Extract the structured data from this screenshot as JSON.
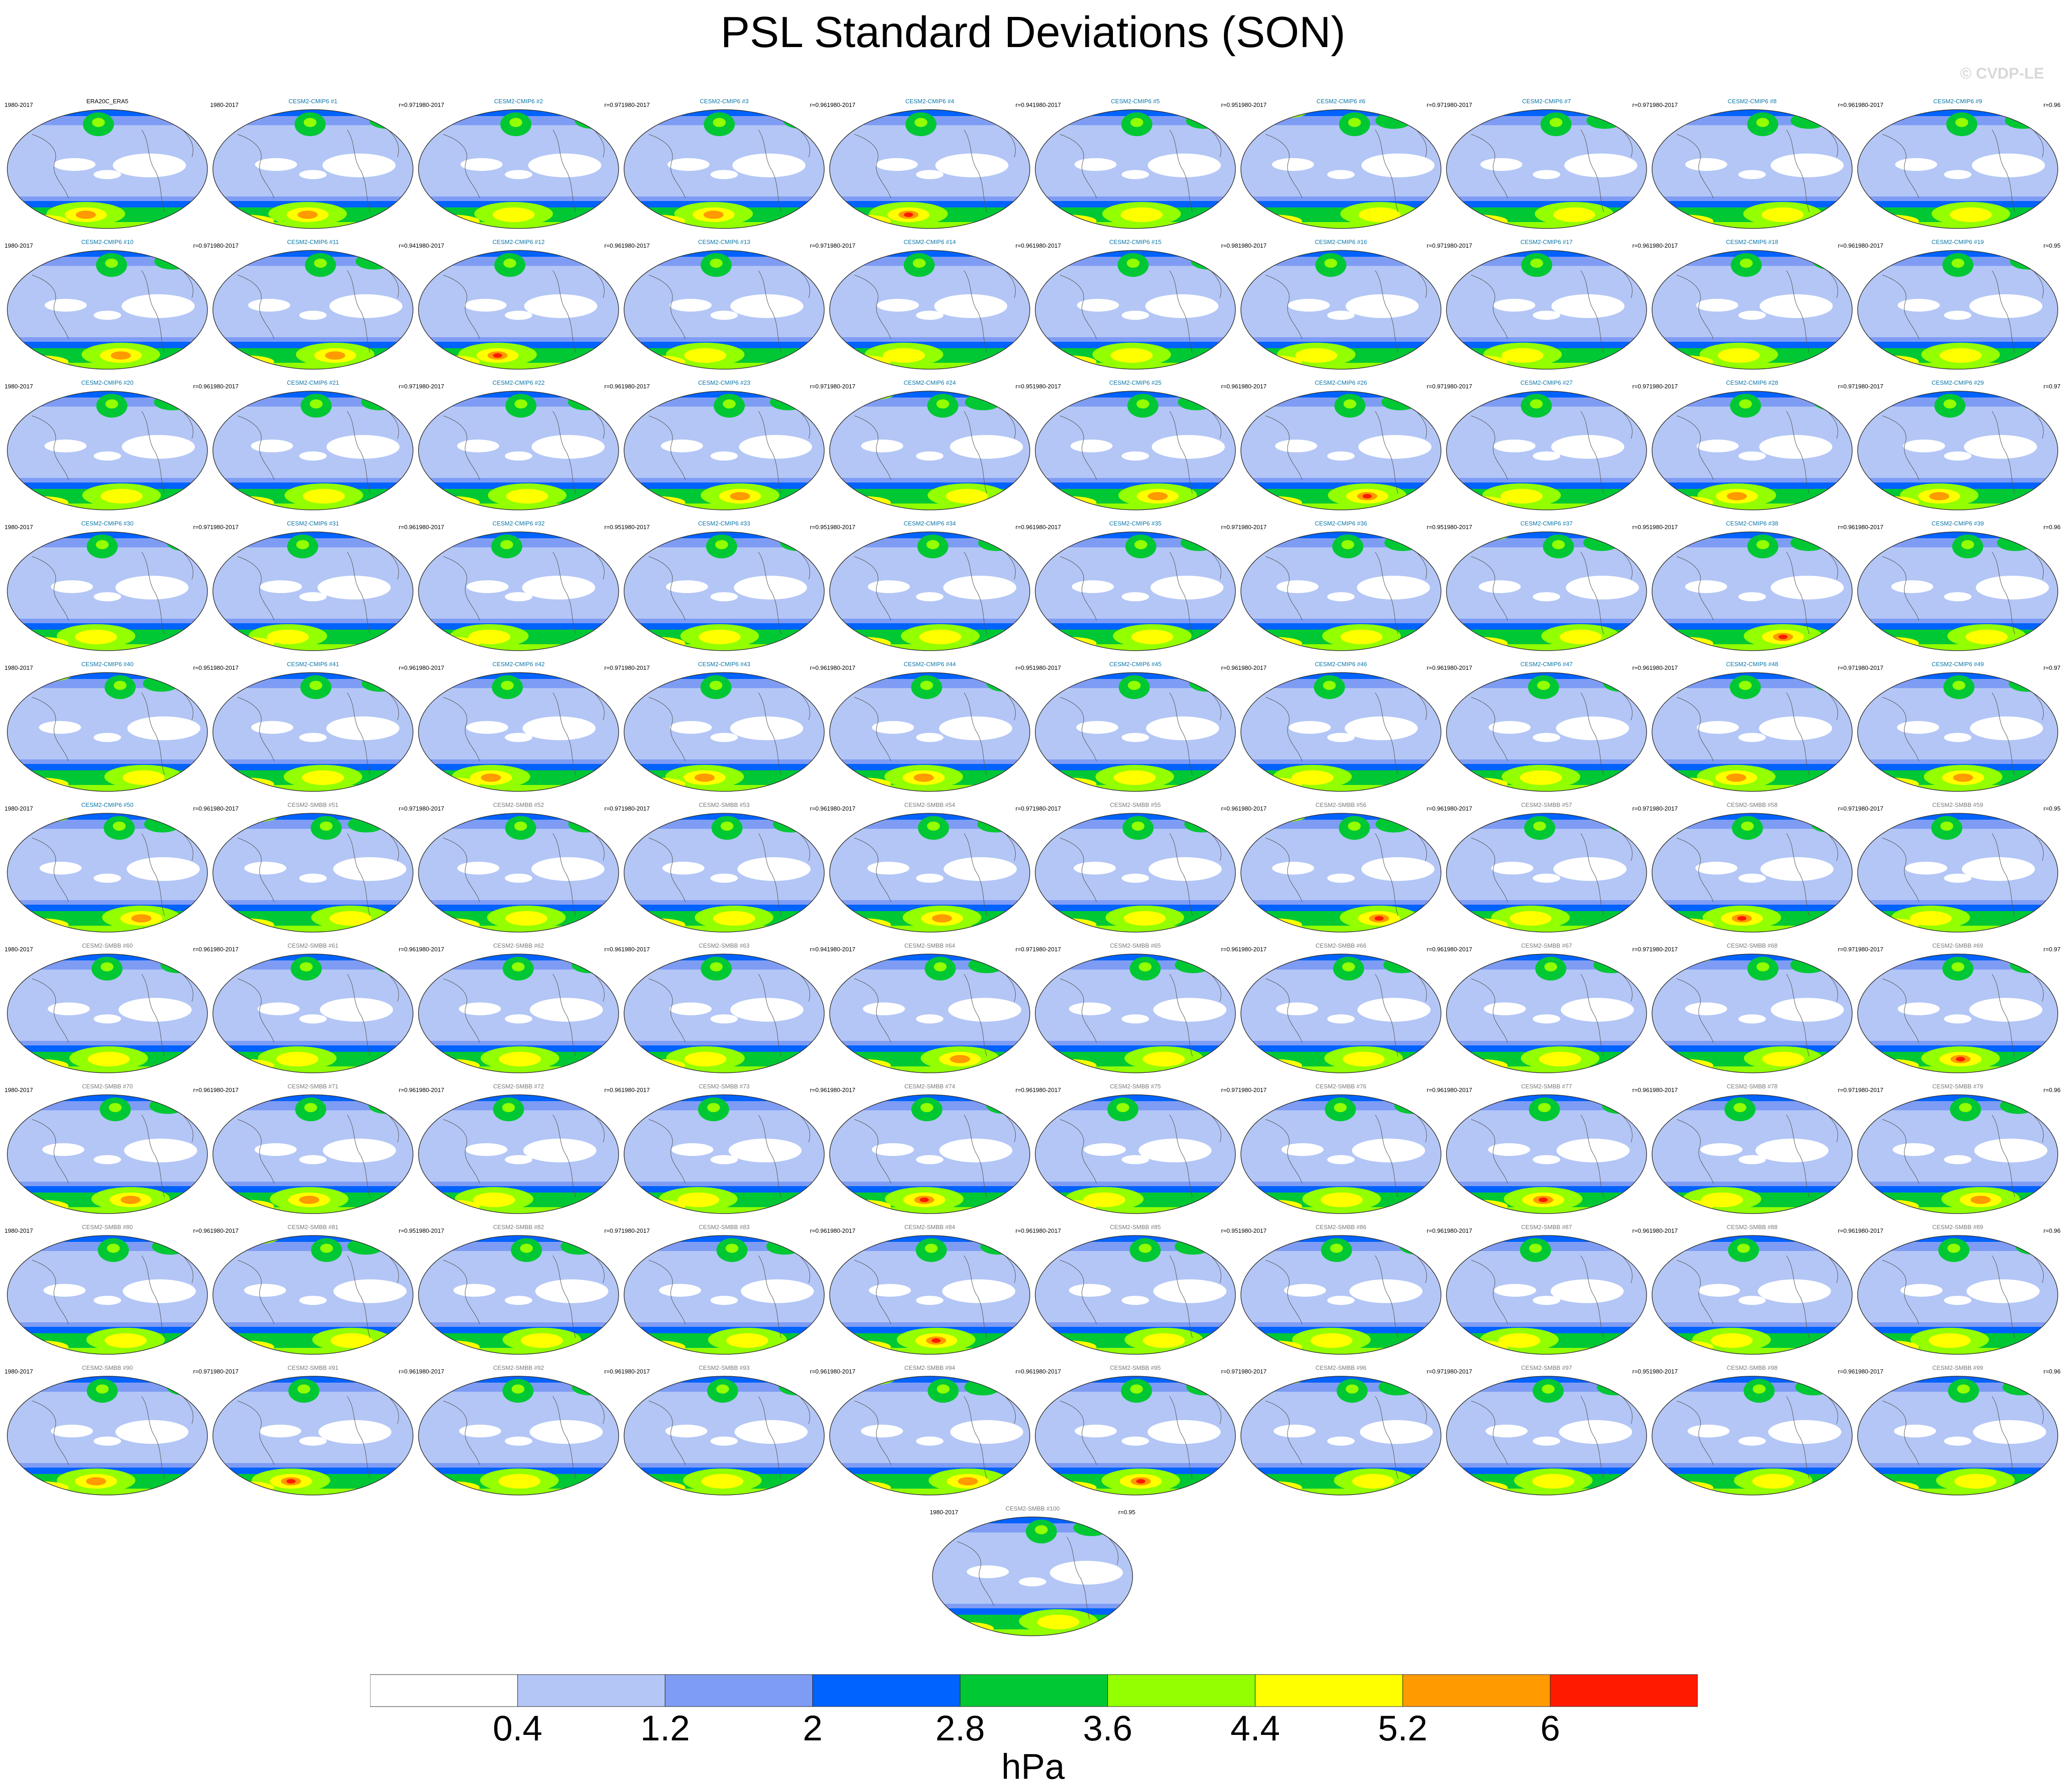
{
  "chart_data": {
    "type": "heatmap",
    "title": "PSL Standard Deviations (SON)",
    "watermark": "© CVDP-LE",
    "units": "hPa",
    "colorbar": {
      "levels": [
        "0.4",
        "1.2",
        "2",
        "2.8",
        "3.6",
        "4.4",
        "5.2",
        "6"
      ],
      "colors": [
        "#ffffff",
        "#b3c6f6",
        "#7f9cf5",
        "#0062ff",
        "#00c834",
        "#93ff00",
        "#ffff00",
        "#ff9a00",
        "#ff1a00"
      ]
    },
    "panels": [
      {
        "name": "ERA20C_ERA5",
        "period": "1980-2017",
        "corr": "",
        "peak": 2
      },
      {
        "name": "CESM2-CMIP6 #1",
        "period": "1980-2017",
        "corr": "r=0.97",
        "peak": 2
      },
      {
        "name": "CESM2-CMIP6 #2",
        "period": "1980-2017",
        "corr": "r=0.97",
        "peak": 1
      },
      {
        "name": "CESM2-CMIP6 #3",
        "period": "1980-2017",
        "corr": "r=0.96",
        "peak": 2
      },
      {
        "name": "CESM2-CMIP6 #4",
        "period": "1980-2017",
        "corr": "r=0.94",
        "peak": 3
      },
      {
        "name": "CESM2-CMIP6 #5",
        "period": "1980-2017",
        "corr": "r=0.95",
        "peak": 1
      },
      {
        "name": "CESM2-CMIP6 #6",
        "period": "1980-2017",
        "corr": "r=0.97",
        "peak": 1
      },
      {
        "name": "CESM2-CMIP6 #7",
        "period": "1980-2017",
        "corr": "r=0.97",
        "peak": 1
      },
      {
        "name": "CESM2-CMIP6 #8",
        "period": "1980-2017",
        "corr": "r=0.96",
        "peak": 1
      },
      {
        "name": "CESM2-CMIP6 #9",
        "period": "1980-2017",
        "corr": "r=0.96",
        "peak": 1
      },
      {
        "name": "CESM2-CMIP6 #10",
        "period": "1980-2017",
        "corr": "r=0.97",
        "peak": 2
      },
      {
        "name": "CESM2-CMIP6 #11",
        "period": "1980-2017",
        "corr": "r=0.94",
        "peak": 2
      },
      {
        "name": "CESM2-CMIP6 #12",
        "period": "1980-2017",
        "corr": "r=0.96",
        "peak": 3
      },
      {
        "name": "CESM2-CMIP6 #13",
        "period": "1980-2017",
        "corr": "r=0.97",
        "peak": 1
      },
      {
        "name": "CESM2-CMIP6 #14",
        "period": "1980-2017",
        "corr": "r=0.96",
        "peak": 1
      },
      {
        "name": "CESM2-CMIP6 #15",
        "period": "1980-2017",
        "corr": "r=0.98",
        "peak": 1
      },
      {
        "name": "CESM2-CMIP6 #16",
        "period": "1980-2017",
        "corr": "r=0.97",
        "peak": 1
      },
      {
        "name": "CESM2-CMIP6 #17",
        "period": "1980-2017",
        "corr": "r=0.96",
        "peak": 1
      },
      {
        "name": "CESM2-CMIP6 #18",
        "period": "1980-2017",
        "corr": "r=0.96",
        "peak": 1
      },
      {
        "name": "CESM2-CMIP6 #19",
        "period": "1980-2017",
        "corr": "r=0.95",
        "peak": 1
      },
      {
        "name": "CESM2-CMIP6 #20",
        "period": "1980-2017",
        "corr": "r=0.96",
        "peak": 1
      },
      {
        "name": "CESM2-CMIP6 #21",
        "period": "1980-2017",
        "corr": "r=0.97",
        "peak": 1
      },
      {
        "name": "CESM2-CMIP6 #22",
        "period": "1980-2017",
        "corr": "r=0.96",
        "peak": 1
      },
      {
        "name": "CESM2-CMIP6 #23",
        "period": "1980-2017",
        "corr": "r=0.97",
        "peak": 2
      },
      {
        "name": "CESM2-CMIP6 #24",
        "period": "1980-2017",
        "corr": "r=0.95",
        "peak": 1
      },
      {
        "name": "CESM2-CMIP6 #25",
        "period": "1980-2017",
        "corr": "r=0.96",
        "peak": 2
      },
      {
        "name": "CESM2-CMIP6 #26",
        "period": "1980-2017",
        "corr": "r=0.97",
        "peak": 3
      },
      {
        "name": "CESM2-CMIP6 #27",
        "period": "1980-2017",
        "corr": "r=0.97",
        "peak": 1
      },
      {
        "name": "CESM2-CMIP6 #28",
        "period": "1980-2017",
        "corr": "r=0.97",
        "peak": 2
      },
      {
        "name": "CESM2-CMIP6 #29",
        "period": "1980-2017",
        "corr": "r=0.97",
        "peak": 2
      },
      {
        "name": "CESM2-CMIP6 #30",
        "period": "1980-2017",
        "corr": "r=0.97",
        "peak": 1
      },
      {
        "name": "CESM2-CMIP6 #31",
        "period": "1980-2017",
        "corr": "r=0.96",
        "peak": 1
      },
      {
        "name": "CESM2-CMIP6 #32",
        "period": "1980-2017",
        "corr": "r=0.95",
        "peak": 1
      },
      {
        "name": "CESM2-CMIP6 #33",
        "period": "1980-2017",
        "corr": "r=0.95",
        "peak": 1
      },
      {
        "name": "CESM2-CMIP6 #34",
        "period": "1980-2017",
        "corr": "r=0.96",
        "peak": 1
      },
      {
        "name": "CESM2-CMIP6 #35",
        "period": "1980-2017",
        "corr": "r=0.97",
        "peak": 1
      },
      {
        "name": "CESM2-CMIP6 #36",
        "period": "1980-2017",
        "corr": "r=0.95",
        "peak": 1
      },
      {
        "name": "CESM2-CMIP6 #37",
        "period": "1980-2017",
        "corr": "r=0.95",
        "peak": 1
      },
      {
        "name": "CESM2-CMIP6 #38",
        "period": "1980-2017",
        "corr": "r=0.96",
        "peak": 3
      },
      {
        "name": "CESM2-CMIP6 #39",
        "period": "1980-2017",
        "corr": "r=0.96",
        "peak": 1
      },
      {
        "name": "CESM2-CMIP6 #40",
        "period": "1980-2017",
        "corr": "r=0.95",
        "peak": 1
      },
      {
        "name": "CESM2-CMIP6 #41",
        "period": "1980-2017",
        "corr": "r=0.96",
        "peak": 1
      },
      {
        "name": "CESM2-CMIP6 #42",
        "period": "1980-2017",
        "corr": "r=0.97",
        "peak": 2
      },
      {
        "name": "CESM2-CMIP6 #43",
        "period": "1980-2017",
        "corr": "r=0.96",
        "peak": 2
      },
      {
        "name": "CESM2-CMIP6 #44",
        "period": "1980-2017",
        "corr": "r=0.95",
        "peak": 2
      },
      {
        "name": "CESM2-CMIP6 #45",
        "period": "1980-2017",
        "corr": "r=0.96",
        "peak": 1
      },
      {
        "name": "CESM2-CMIP6 #46",
        "period": "1980-2017",
        "corr": "r=0.96",
        "peak": 1
      },
      {
        "name": "CESM2-CMIP6 #47",
        "period": "1980-2017",
        "corr": "r=0.96",
        "peak": 1
      },
      {
        "name": "CESM2-CMIP6 #48",
        "period": "1980-2017",
        "corr": "r=0.97",
        "peak": 2
      },
      {
        "name": "CESM2-CMIP6 #49",
        "period": "1980-2017",
        "corr": "r=0.97",
        "peak": 2
      },
      {
        "name": "CESM2-CMIP6 #50",
        "period": "1980-2017",
        "corr": "r=0.96",
        "peak": 2
      },
      {
        "name": "CESM2-SMBB #51",
        "period": "1980-2017",
        "corr": "r=0.97",
        "peak": 1
      },
      {
        "name": "CESM2-SMBB #52",
        "period": "1980-2017",
        "corr": "r=0.97",
        "peak": 1
      },
      {
        "name": "CESM2-SMBB #53",
        "period": "1980-2017",
        "corr": "r=0.96",
        "peak": 1
      },
      {
        "name": "CESM2-SMBB #54",
        "period": "1980-2017",
        "corr": "r=0.97",
        "peak": 2
      },
      {
        "name": "CESM2-SMBB #55",
        "period": "1980-2017",
        "corr": "r=0.96",
        "peak": 1
      },
      {
        "name": "CESM2-SMBB #56",
        "period": "1980-2017",
        "corr": "r=0.96",
        "peak": 3
      },
      {
        "name": "CESM2-SMBB #57",
        "period": "1980-2017",
        "corr": "r=0.97",
        "peak": 1
      },
      {
        "name": "CESM2-SMBB #58",
        "period": "1980-2017",
        "corr": "r=0.97",
        "peak": 3
      },
      {
        "name": "CESM2-SMBB #59",
        "period": "1980-2017",
        "corr": "r=0.95",
        "peak": 1
      },
      {
        "name": "CESM2-SMBB #60",
        "period": "1980-2017",
        "corr": "r=0.96",
        "peak": 1
      },
      {
        "name": "CESM2-SMBB #61",
        "period": "1980-2017",
        "corr": "r=0.96",
        "peak": 1
      },
      {
        "name": "CESM2-SMBB #62",
        "period": "1980-2017",
        "corr": "r=0.96",
        "peak": 1
      },
      {
        "name": "CESM2-SMBB #63",
        "period": "1980-2017",
        "corr": "r=0.94",
        "peak": 1
      },
      {
        "name": "CESM2-SMBB #64",
        "period": "1980-2017",
        "corr": "r=0.97",
        "peak": 2
      },
      {
        "name": "CESM2-SMBB #65",
        "period": "1980-2017",
        "corr": "r=0.96",
        "peak": 1
      },
      {
        "name": "CESM2-SMBB #66",
        "period": "1980-2017",
        "corr": "r=0.96",
        "peak": 1
      },
      {
        "name": "CESM2-SMBB #67",
        "period": "1980-2017",
        "corr": "r=0.97",
        "peak": 1
      },
      {
        "name": "CESM2-SMBB #68",
        "period": "1980-2017",
        "corr": "r=0.97",
        "peak": 1
      },
      {
        "name": "CESM2-SMBB #69",
        "period": "1980-2017",
        "corr": "r=0.97",
        "peak": 3
      },
      {
        "name": "CESM2-SMBB #70",
        "period": "1980-2017",
        "corr": "r=0.96",
        "peak": 2
      },
      {
        "name": "CESM2-SMBB #71",
        "period": "1980-2017",
        "corr": "r=0.96",
        "peak": 2
      },
      {
        "name": "CESM2-SMBB #72",
        "period": "1980-2017",
        "corr": "r=0.96",
        "peak": 1
      },
      {
        "name": "CESM2-SMBB #73",
        "period": "1980-2017",
        "corr": "r=0.96",
        "peak": 1
      },
      {
        "name": "CESM2-SMBB #74",
        "period": "1980-2017",
        "corr": "r=0.96",
        "peak": 3
      },
      {
        "name": "CESM2-SMBB #75",
        "period": "1980-2017",
        "corr": "r=0.97",
        "peak": 1
      },
      {
        "name": "CESM2-SMBB #76",
        "period": "1980-2017",
        "corr": "r=0.96",
        "peak": 1
      },
      {
        "name": "CESM2-SMBB #77",
        "period": "1980-2017",
        "corr": "r=0.96",
        "peak": 3
      },
      {
        "name": "CESM2-SMBB #78",
        "period": "1980-2017",
        "corr": "r=0.97",
        "peak": 1
      },
      {
        "name": "CESM2-SMBB #79",
        "period": "1980-2017",
        "corr": "r=0.96",
        "peak": 2
      },
      {
        "name": "CESM2-SMBB #80",
        "period": "1980-2017",
        "corr": "r=0.96",
        "peak": 1
      },
      {
        "name": "CESM2-SMBB #81",
        "period": "1980-2017",
        "corr": "r=0.95",
        "peak": 1
      },
      {
        "name": "CESM2-SMBB #82",
        "period": "1980-2017",
        "corr": "r=0.97",
        "peak": 1
      },
      {
        "name": "CESM2-SMBB #83",
        "period": "1980-2017",
        "corr": "r=0.96",
        "peak": 1
      },
      {
        "name": "CESM2-SMBB #84",
        "period": "1980-2017",
        "corr": "r=0.96",
        "peak": 3
      },
      {
        "name": "CESM2-SMBB #85",
        "period": "1980-2017",
        "corr": "r=0.95",
        "peak": 1
      },
      {
        "name": "CESM2-SMBB #86",
        "period": "1980-2017",
        "corr": "r=0.96",
        "peak": 1
      },
      {
        "name": "CESM2-SMBB #87",
        "period": "1980-2017",
        "corr": "r=0.96",
        "peak": 1
      },
      {
        "name": "CESM2-SMBB #88",
        "period": "1980-2017",
        "corr": "r=0.96",
        "peak": 1
      },
      {
        "name": "CESM2-SMBB #89",
        "period": "1980-2017",
        "corr": "r=0.96",
        "peak": 1
      },
      {
        "name": "CESM2-SMBB #90",
        "period": "1980-2017",
        "corr": "r=0.97",
        "peak": 2
      },
      {
        "name": "CESM2-SMBB #91",
        "period": "1980-2017",
        "corr": "r=0.96",
        "peak": 3
      },
      {
        "name": "CESM2-SMBB #92",
        "period": "1980-2017",
        "corr": "r=0.96",
        "peak": 1
      },
      {
        "name": "CESM2-SMBB #93",
        "period": "1980-2017",
        "corr": "r=0.96",
        "peak": 1
      },
      {
        "name": "CESM2-SMBB #94",
        "period": "1980-2017",
        "corr": "r=0.96",
        "peak": 2
      },
      {
        "name": "CESM2-SMBB #95",
        "period": "1980-2017",
        "corr": "r=0.97",
        "peak": 3
      },
      {
        "name": "CESM2-SMBB #96",
        "period": "1980-2017",
        "corr": "r=0.97",
        "peak": 1
      },
      {
        "name": "CESM2-SMBB #97",
        "period": "1980-2017",
        "corr": "r=0.95",
        "peak": 1
      },
      {
        "name": "CESM2-SMBB #98",
        "period": "1980-2017",
        "corr": "r=0.96",
        "peak": 1
      },
      {
        "name": "CESM2-SMBB #99",
        "period": "1980-2017",
        "corr": "r=0.96",
        "peak": 1
      },
      {
        "name": "CESM2-SMBB #100",
        "period": "1980-2017",
        "corr": "r=0.95",
        "peak": 1
      }
    ]
  }
}
